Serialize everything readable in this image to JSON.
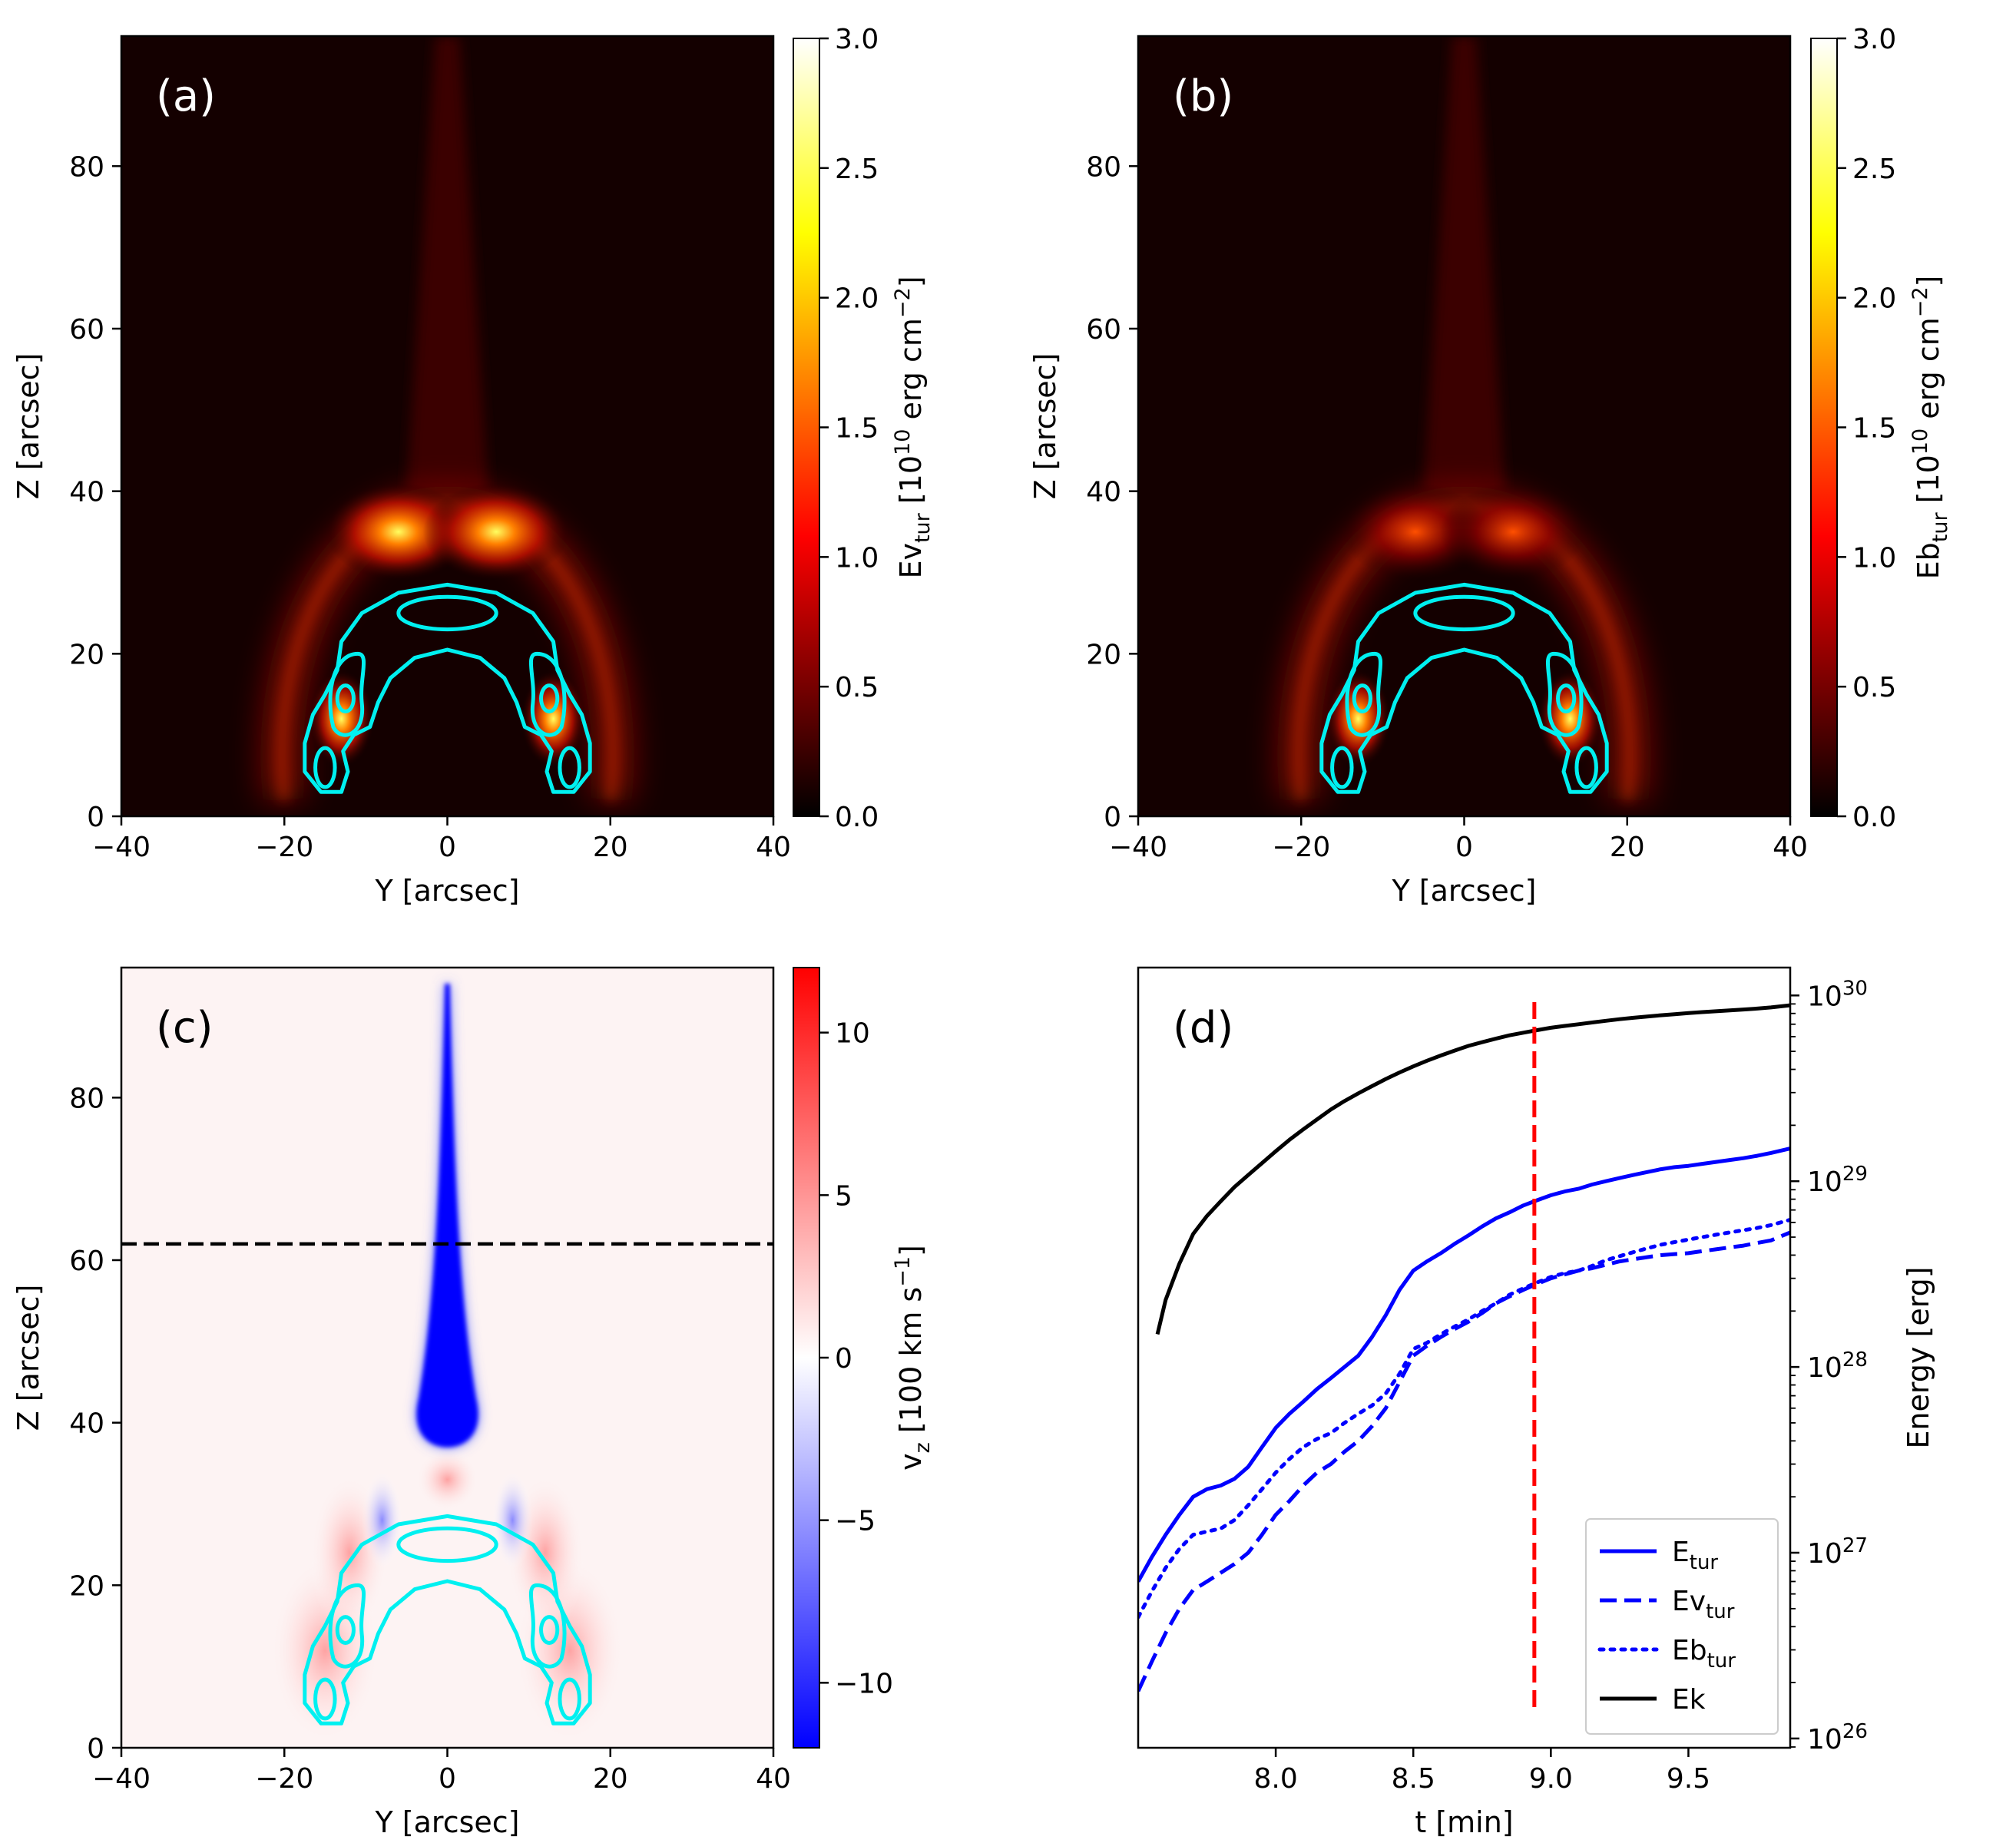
{
  "chart_data": [
    {
      "panel_label": "(a)",
      "type": "heatmap",
      "xlabel": "Y [arcsec]",
      "ylabel": "Z [arcsec]",
      "xlim": [
        -40,
        40
      ],
      "ylim": [
        0,
        96
      ],
      "x_ticks": [
        -40,
        -20,
        0,
        20,
        40
      ],
      "x_tick_labels": [
        "−40",
        "−20",
        "0",
        "20",
        "40"
      ],
      "y_ticks": [
        0,
        20,
        40,
        60,
        80
      ],
      "y_tick_labels": [
        "0",
        "20",
        "40",
        "60",
        "80"
      ],
      "colormap": "hot",
      "colorbar": {
        "label_main": "Ev",
        "label_sub": "tur",
        "label_rest": " [10",
        "label_sup1": "10",
        "label_rest2": " erg cm",
        "label_sup2": "−2",
        "label_close": "]",
        "range": [
          0.0,
          3.0
        ],
        "ticks": [
          0.0,
          0.5,
          1.0,
          1.5,
          2.0,
          2.5,
          3.0
        ],
        "tick_labels": [
          "0.0",
          "0.5",
          "1.0",
          "1.5",
          "2.0",
          "2.5",
          "3.0"
        ]
      },
      "contour_color": "#00f0f0"
    },
    {
      "panel_label": "(b)",
      "type": "heatmap",
      "xlabel": "Y [arcsec]",
      "ylabel": "Z [arcsec]",
      "xlim": [
        -40,
        40
      ],
      "ylim": [
        0,
        96
      ],
      "x_ticks": [
        -40,
        -20,
        0,
        20,
        40
      ],
      "x_tick_labels": [
        "−40",
        "−20",
        "0",
        "20",
        "40"
      ],
      "y_ticks": [
        0,
        20,
        40,
        60,
        80
      ],
      "y_tick_labels": [
        "0",
        "20",
        "40",
        "60",
        "80"
      ],
      "colormap": "hot",
      "colorbar": {
        "label_main": "Eb",
        "label_sub": "tur",
        "label_rest": " [10",
        "label_sup1": "10",
        "label_rest2": " erg cm",
        "label_sup2": "−2",
        "label_close": "]",
        "range": [
          0.0,
          3.0
        ],
        "ticks": [
          0.0,
          0.5,
          1.0,
          1.5,
          2.0,
          2.5,
          3.0
        ],
        "tick_labels": [
          "0.0",
          "0.5",
          "1.0",
          "1.5",
          "2.0",
          "2.5",
          "3.0"
        ]
      },
      "contour_color": "#00f0f0"
    },
    {
      "panel_label": "(c)",
      "type": "heatmap",
      "xlabel": "Y [arcsec]",
      "ylabel": "Z [arcsec]",
      "xlim": [
        -40,
        40
      ],
      "ylim": [
        0,
        96
      ],
      "x_ticks": [
        -40,
        -20,
        0,
        20,
        40
      ],
      "x_tick_labels": [
        "−40",
        "−20",
        "0",
        "20",
        "40"
      ],
      "y_ticks": [
        0,
        20,
        40,
        60,
        80
      ],
      "y_tick_labels": [
        "0",
        "20",
        "40",
        "60",
        "80"
      ],
      "colormap": "bwr",
      "horizontal_dashed_line_z": 62,
      "colorbar": {
        "label_main": "v",
        "label_sub": "z",
        "label_rest": " [100 km s",
        "label_sup1": "−1",
        "label_rest2": "",
        "label_sup2": "",
        "label_close": "]",
        "range": [
          -12,
          12
        ],
        "ticks": [
          -10,
          -5,
          0,
          5,
          10
        ],
        "tick_labels": [
          "−10",
          "−5",
          "0",
          "5",
          "10"
        ]
      },
      "contour_color": "#00f0f0"
    },
    {
      "panel_label": "(d)",
      "type": "line",
      "xlabel": "t [min]",
      "ylabel": "Energy [erg]",
      "xlim": [
        7.5,
        9.87
      ],
      "ylim_log10": [
        25.95,
        30.15
      ],
      "y_scale": "log",
      "x_ticks": [
        8.0,
        8.5,
        9.0,
        9.5
      ],
      "x_tick_labels": [
        "8.0",
        "8.5",
        "9.0",
        "9.5"
      ],
      "y_ticks_exp": [
        26,
        27,
        28,
        29,
        30
      ],
      "y_tick_base": "10",
      "y_tick_exps": [
        "26",
        "27",
        "28",
        "29",
        "30"
      ],
      "vertical_dashed_line_t": 8.94,
      "legend_position": "lower-right",
      "series": [
        {
          "name": "E",
          "name_sub": "tur",
          "color": "#0000ff",
          "style": "solid",
          "x": [
            7.5,
            7.55,
            7.6,
            7.65,
            7.7,
            7.75,
            7.8,
            7.85,
            7.9,
            7.95,
            8.0,
            8.05,
            8.1,
            8.15,
            8.2,
            8.25,
            8.3,
            8.35,
            8.4,
            8.45,
            8.5,
            8.55,
            8.6,
            8.65,
            8.7,
            8.75,
            8.8,
            8.85,
            8.9,
            8.95,
            9.0,
            9.05,
            9.1,
            9.15,
            9.2,
            9.25,
            9.3,
            9.35,
            9.4,
            9.45,
            9.5,
            9.55,
            9.6,
            9.65,
            9.7,
            9.75,
            9.8,
            9.87
          ],
          "y": [
            7e+26,
            9.5e+26,
            1.25e+27,
            1.6e+27,
            2e+27,
            2.2e+27,
            2.3e+27,
            2.5e+27,
            2.9e+27,
            3.7e+27,
            4.7e+27,
            5.6e+27,
            6.5e+27,
            7.6e+27,
            8.7e+27,
            1e+28,
            1.15e+28,
            1.45e+28,
            1.9e+28,
            2.6e+28,
            3.3e+28,
            3.7e+28,
            4.1e+28,
            4.6e+28,
            5.1e+28,
            5.7e+28,
            6.3e+28,
            6.8e+28,
            7.4e+28,
            7.9e+28,
            8.4e+28,
            8.8e+28,
            9.1e+28,
            9.6e+28,
            1e+29,
            1.04e+29,
            1.08e+29,
            1.12e+29,
            1.16e+29,
            1.19e+29,
            1.21e+29,
            1.24e+29,
            1.27e+29,
            1.3e+29,
            1.33e+29,
            1.37e+29,
            1.42e+29,
            1.5e+29
          ]
        },
        {
          "name": "Ev",
          "name_sub": "tur",
          "color": "#0000ff",
          "style": "dashed",
          "x": [
            7.5,
            7.55,
            7.6,
            7.65,
            7.7,
            7.75,
            7.8,
            7.85,
            7.9,
            7.95,
            8.0,
            8.05,
            8.1,
            8.15,
            8.2,
            8.25,
            8.3,
            8.35,
            8.4,
            8.45,
            8.5,
            8.55,
            8.6,
            8.65,
            8.7,
            8.75,
            8.8,
            8.85,
            8.9,
            8.95,
            9.0,
            9.05,
            9.1,
            9.15,
            9.2,
            9.25,
            9.3,
            9.35,
            9.4,
            9.45,
            9.5,
            9.55,
            9.6,
            9.65,
            9.7,
            9.75,
            9.8,
            9.87
          ],
          "y": [
            1.8e+26,
            2.6e+26,
            3.7e+26,
            5e+26,
            6.3e+26,
            7e+26,
            7.8e+26,
            8.7e+26,
            1e+27,
            1.25e+27,
            1.6e+27,
            1.9e+27,
            2.3e+27,
            2.7e+27,
            3e+27,
            3.5e+27,
            4e+27,
            4.8e+27,
            6e+27,
            8.3e+27,
            1.15e+28,
            1.3e+28,
            1.45e+28,
            1.6e+28,
            1.75e+28,
            1.95e+28,
            2.2e+28,
            2.4e+28,
            2.6e+28,
            2.8e+28,
            3e+28,
            3.15e+28,
            3.3e+28,
            3.4e+28,
            3.55e+28,
            3.7e+28,
            3.8e+28,
            3.9e+28,
            4e+28,
            4.05e+28,
            4.1e+28,
            4.2e+28,
            4.3e+28,
            4.4e+28,
            4.5e+28,
            4.65e+28,
            4.8e+28,
            5.3e+28
          ]
        },
        {
          "name": "Eb",
          "name_sub": "tur",
          "color": "#0000ff",
          "style": "dotted",
          "x": [
            7.5,
            7.55,
            7.6,
            7.65,
            7.7,
            7.75,
            7.8,
            7.85,
            7.9,
            7.95,
            8.0,
            8.05,
            8.1,
            8.15,
            8.2,
            8.25,
            8.3,
            8.35,
            8.4,
            8.45,
            8.5,
            8.55,
            8.6,
            8.65,
            8.7,
            8.75,
            8.8,
            8.85,
            8.9,
            8.95,
            9.0,
            9.05,
            9.1,
            9.15,
            9.2,
            9.25,
            9.3,
            9.35,
            9.4,
            9.45,
            9.5,
            9.55,
            9.6,
            9.65,
            9.7,
            9.75,
            9.8,
            9.87
          ],
          "y": [
            4.5e+26,
            6.2e+26,
            8.3e+26,
            1.05e+27,
            1.25e+27,
            1.3e+27,
            1.35e+27,
            1.5e+27,
            1.8e+27,
            2.2e+27,
            2.7e+27,
            3.2e+27,
            3.7e+27,
            4.1e+27,
            4.4e+27,
            5e+27,
            5.6e+27,
            6.2e+27,
            7.2e+27,
            9.2e+27,
            1.25e+28,
            1.35e+28,
            1.5e+28,
            1.65e+28,
            1.8e+28,
            2e+28,
            2.2e+28,
            2.45e+28,
            2.65e+28,
            2.85e+28,
            3.05e+28,
            3.2e+28,
            3.3e+28,
            3.5e+28,
            3.75e+28,
            3.95e+28,
            4.15e+28,
            4.35e+28,
            4.55e+28,
            4.7e+28,
            4.85e+28,
            5e+28,
            5.15e+28,
            5.3e+28,
            5.45e+28,
            5.6e+28,
            5.8e+28,
            6.2e+28
          ]
        },
        {
          "name": "Ek",
          "name_sub": "",
          "color": "#000000",
          "style": "solid",
          "x": [
            7.57,
            7.6,
            7.65,
            7.7,
            7.75,
            7.8,
            7.85,
            7.9,
            7.95,
            8.0,
            8.05,
            8.1,
            8.15,
            8.2,
            8.25,
            8.3,
            8.35,
            8.4,
            8.45,
            8.5,
            8.55,
            8.6,
            8.65,
            8.7,
            8.75,
            8.8,
            8.85,
            8.9,
            8.95,
            9.0,
            9.05,
            9.1,
            9.15,
            9.2,
            9.25,
            9.3,
            9.35,
            9.4,
            9.45,
            9.5,
            9.55,
            9.6,
            9.65,
            9.7,
            9.75,
            9.8,
            9.87
          ],
          "y": [
            1.5e+28,
            2.3e+28,
            3.6e+28,
            5.2e+28,
            6.5e+28,
            7.8e+28,
            9.3e+28,
            1.08e+29,
            1.25e+29,
            1.45e+29,
            1.67e+29,
            1.9e+29,
            2.15e+29,
            2.43e+29,
            2.7e+29,
            2.97e+29,
            3.25e+29,
            3.55e+29,
            3.85e+29,
            4.15e+29,
            4.45e+29,
            4.75e+29,
            5.05e+29,
            5.35e+29,
            5.6e+29,
            5.85e+29,
            6.1e+29,
            6.3e+29,
            6.5e+29,
            6.7e+29,
            6.85e+29,
            7e+29,
            7.15e+29,
            7.3e+29,
            7.45e+29,
            7.58e+29,
            7.7e+29,
            7.82e+29,
            7.93e+29,
            8.03e+29,
            8.13e+29,
            8.22e+29,
            8.31e+29,
            8.4e+29,
            8.5e+29,
            8.62e+29,
            8.85e+29
          ]
        }
      ]
    }
  ]
}
